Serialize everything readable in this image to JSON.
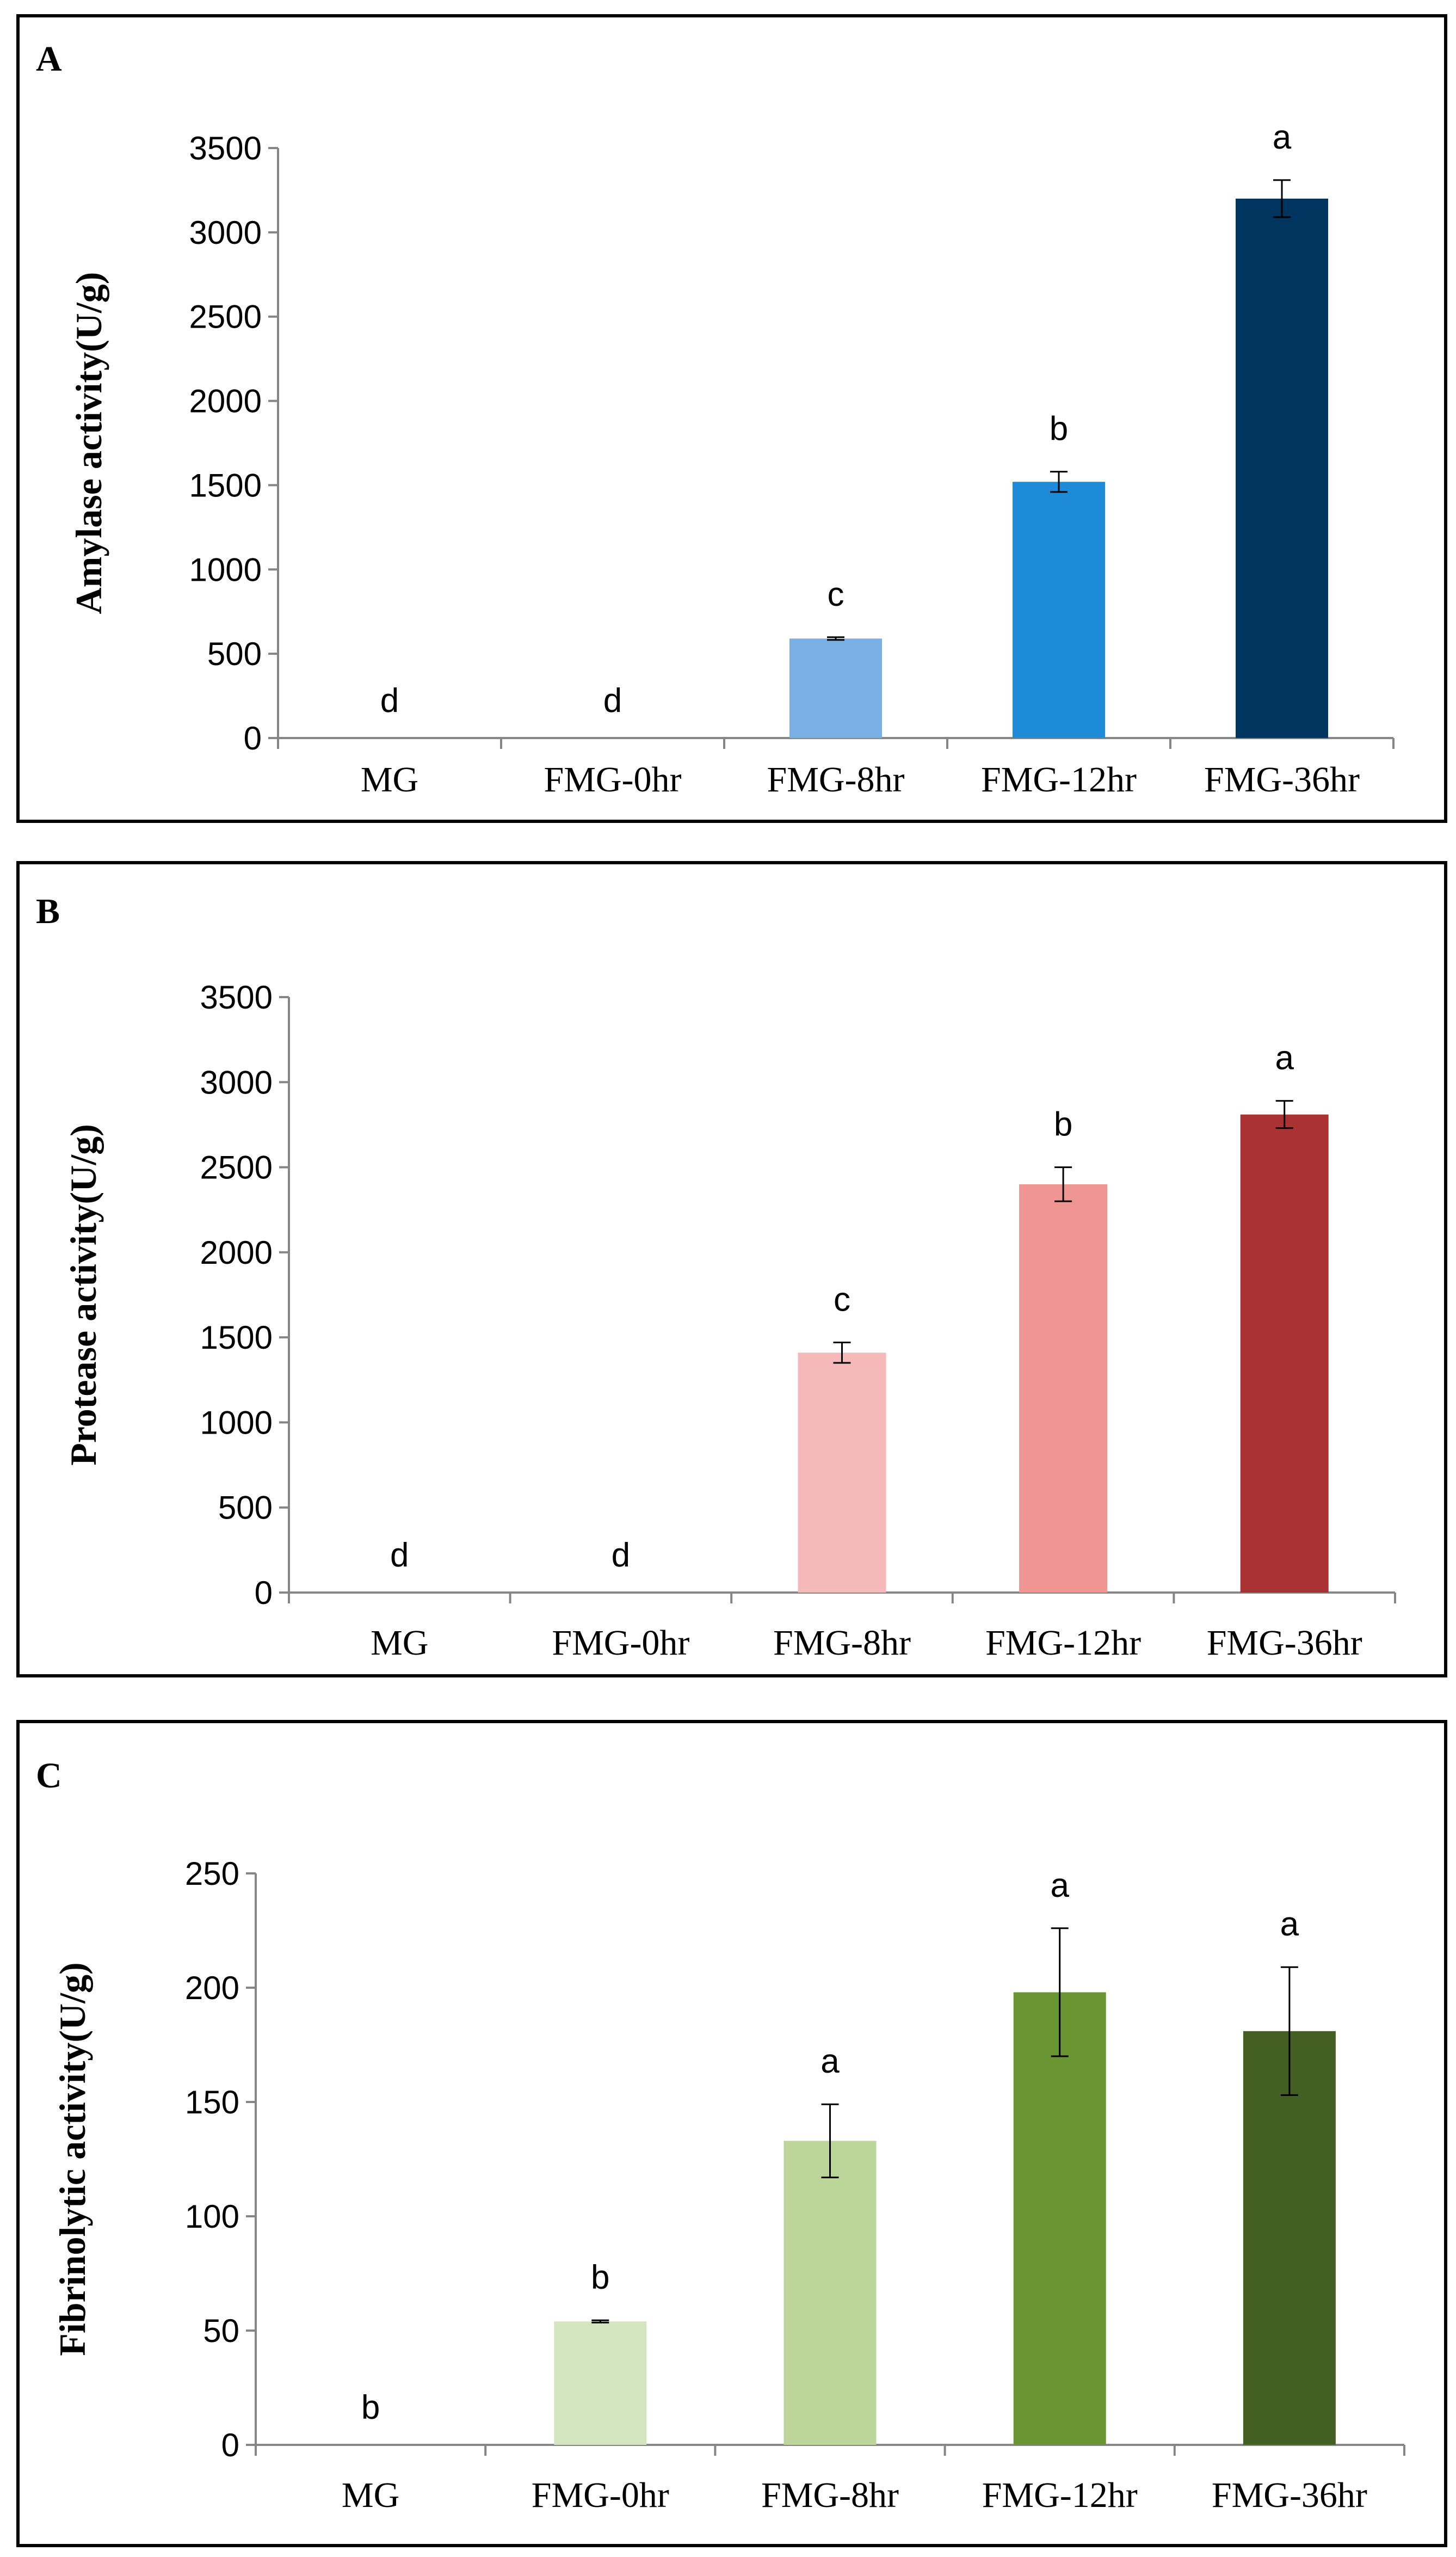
{
  "chart_data": [
    {
      "type": "bar",
      "panel": "A",
      "ylabel": "Amylase activity(U/g)",
      "categories": [
        "MG",
        "FMG-0hr",
        "FMG-8hr",
        "FMG-12hr",
        "FMG-36hr"
      ],
      "values": [
        0,
        0,
        590,
        1520,
        3200
      ],
      "errors": [
        0,
        0,
        8,
        60,
        110
      ],
      "significance": [
        "d",
        "d",
        "c",
        "b",
        "a"
      ],
      "colors": [
        "#7aafe3",
        "#7aafe3",
        "#7aafe3",
        "#1e8bd8",
        "#003560"
      ],
      "ylim": [
        0,
        3500
      ],
      "yticks": [
        0,
        500,
        1000,
        1500,
        2000,
        2500,
        3000,
        3500
      ],
      "grid": false,
      "legend": "none"
    },
    {
      "type": "bar",
      "panel": "B",
      "ylabel": "Protease activity(U/g)",
      "categories": [
        "MG",
        "FMG-0hr",
        "FMG-8hr",
        "FMG-12hr",
        "FMG-36hr"
      ],
      "values": [
        0,
        0,
        1410,
        2400,
        2810
      ],
      "errors": [
        0,
        0,
        60,
        100,
        80
      ],
      "significance": [
        "d",
        "d",
        "c",
        "b",
        "a"
      ],
      "colors": [
        "#f5b9b9",
        "#f5b9b9",
        "#f5b9b9",
        "#ef9693",
        "#ab3233"
      ],
      "ylim": [
        0,
        3500
      ],
      "yticks": [
        0,
        500,
        1000,
        1500,
        2000,
        2500,
        3000,
        3500
      ],
      "grid": false,
      "legend": "none"
    },
    {
      "type": "bar",
      "panel": "C",
      "ylabel": "Fibrinolytic activity(U/g)",
      "categories": [
        "MG",
        "FMG-0hr",
        "FMG-8hr",
        "FMG-12hr",
        "FMG-36hr"
      ],
      "values": [
        0,
        54,
        133,
        198,
        181
      ],
      "errors": [
        0,
        0.5,
        16,
        28,
        28
      ],
      "significance": [
        "b",
        "b",
        "a",
        "a",
        "a"
      ],
      "colors": [
        "#d4e6c0",
        "#d4e6c0",
        "#bcd699",
        "#6a9533",
        "#435f22"
      ],
      "ylim": [
        0,
        250
      ],
      "yticks": [
        0,
        50,
        100,
        150,
        200,
        250
      ],
      "grid": false,
      "legend": "none"
    }
  ]
}
